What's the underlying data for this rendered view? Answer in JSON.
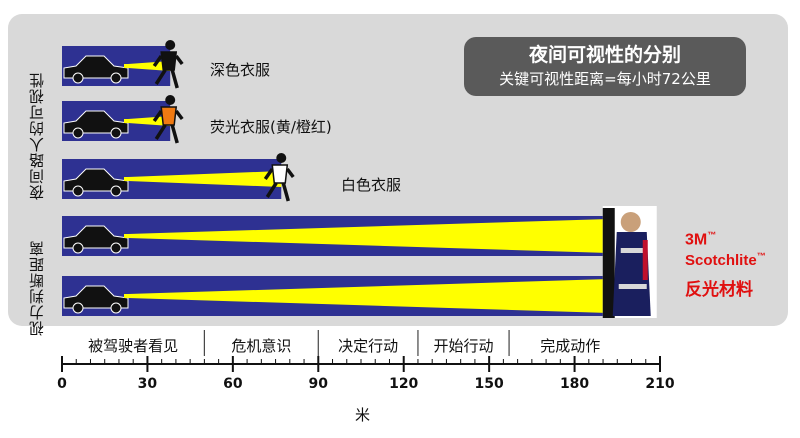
{
  "title": "夜间可视性的分别",
  "subtitle": "关键可视性距离=每小时72公里",
  "group_labels": {
    "pedestrian_at_night": "夜间路人的可视性",
    "visual_judgment_distance": "视力判断距离"
  },
  "rows": [
    {
      "label": "深色衣服",
      "distance": 38,
      "beam": "short",
      "figure_color": "#111111"
    },
    {
      "label": "荧光衣服(黄/橙红)",
      "distance": 38,
      "beam": "short",
      "figure_color": "#f07a12"
    },
    {
      "label": "白色衣服",
      "distance": 77,
      "beam": "mid",
      "figure_color": "#ffffff"
    },
    {
      "label": "",
      "distance": 192,
      "beam": "long",
      "figure_color": ""
    },
    {
      "label": "",
      "distance": 192,
      "beam": "long",
      "figure_color": ""
    }
  ],
  "brand": {
    "line1": "3M",
    "line1_tm": "™",
    "line2": "Scotchlite",
    "line2_tm": "™",
    "line3": "反光材料",
    "color": "#e01010"
  },
  "phases": [
    {
      "label": "被驾驶者看见",
      "start": 0,
      "end": 50
    },
    {
      "label": "危机意识",
      "start": 50,
      "end": 90
    },
    {
      "label": "决定行动",
      "start": 90,
      "end": 125
    },
    {
      "label": "开始行动",
      "start": 125,
      "end": 157
    },
    {
      "label": "完成动作",
      "start": 157,
      "end": 200
    }
  ],
  "colors": {
    "panel": "#d9d9d9",
    "bar": "#2e3192",
    "beam": "#ffff00",
    "title_box": "#5a5a5a",
    "brand_red": "#e01010"
  },
  "chart_data": {
    "type": "bar",
    "title": "夜间可视性的分别",
    "subtitle": "关键可视性距离=每小时72公里",
    "categories": [
      "深色衣服",
      "荧光衣服(黄/橙红)",
      "白色衣服",
      "3M Scotchlite 反光材料",
      "3M Scotchlite 反光材料"
    ],
    "values": [
      38,
      38,
      77,
      192,
      192
    ],
    "xlabel": "米",
    "xlim": [
      0,
      210
    ],
    "xticks": [
      0,
      30,
      60,
      90,
      120,
      150,
      180,
      210
    ],
    "orientation": "horizontal",
    "grid": false
  }
}
